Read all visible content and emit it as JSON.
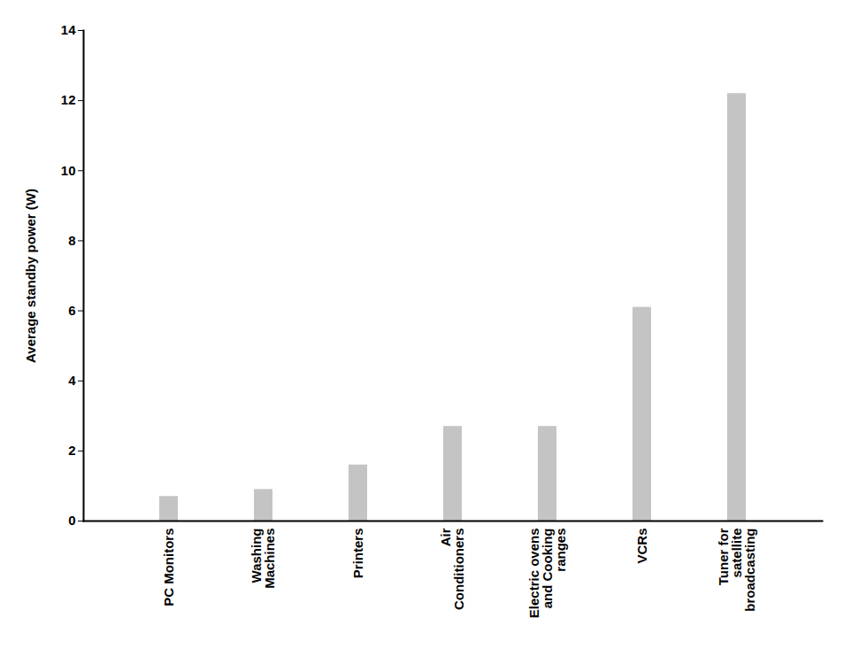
{
  "chart_data": {
    "type": "bar",
    "categories": [
      "PC Monitors",
      "Washing Machines",
      "Printers",
      "Air Conditioners",
      "Electric ovens and Cooking ranges",
      "VCRs",
      "Tuner for satellite broadcasting"
    ],
    "values": [
      0.7,
      0.9,
      1.6,
      2.7,
      2.7,
      6.1,
      12.2
    ],
    "color": "#c4c4c4",
    "y_label": "Average standby power (W)",
    "ylim": [
      0,
      14
    ],
    "yticks": [
      0,
      2,
      4,
      6,
      8,
      10,
      12,
      14
    ],
    "grid": false
  }
}
